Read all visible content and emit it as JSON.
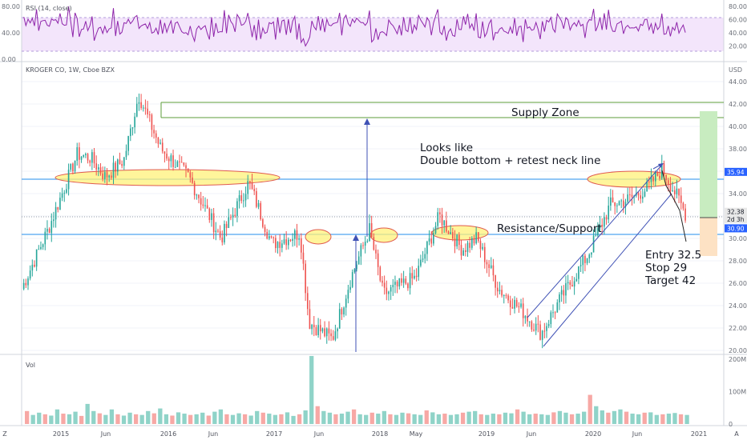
{
  "chart_data": {
    "type": "candlestick",
    "title": "KROGER CO, 1W, Cboe BZX",
    "currency": "USD",
    "price_axis": {
      "min": 20.0,
      "max": 45.0,
      "ticks": [
        "20.00",
        "22.00",
        "24.00",
        "26.00",
        "28.00",
        "30.00",
        "32.00",
        "34.00",
        "36.00",
        "38.00",
        "40.00",
        "42.00",
        "44.00"
      ]
    },
    "rsi": {
      "label": "RSI (14, close)",
      "min": 0,
      "max": 85,
      "upper": 70,
      "lower": 30,
      "ticks": [
        "20.00",
        "40.00",
        "60.00",
        "80.00"
      ],
      "left_ticks": [
        "0.00",
        "40.00",
        "80.00"
      ]
    },
    "volume": {
      "label": "Vol",
      "max": 200,
      "ticks": [
        "0",
        "100M",
        "200M"
      ]
    },
    "x_labels": [
      "Z",
      "2015",
      "Jun",
      "2016",
      "Jun",
      "2017",
      "Jun",
      "2018",
      "May",
      "2019",
      "Jun",
      "2020",
      "Jun",
      "2021",
      "A"
    ],
    "price_tags": [
      {
        "text": "35.94",
        "value": 35.94,
        "color": "#2962ff"
      },
      {
        "text": "32.38",
        "value": 32.38,
        "color": "#e8e8e8"
      },
      {
        "text": "2d 3h",
        "value": 31.7,
        "color": "#e8e8e8"
      },
      {
        "text": "30.90",
        "value": 30.9,
        "color": "#2962ff"
      }
    ],
    "levels": [
      {
        "name": "resistance-support-upper",
        "value": 35.94
      },
      {
        "name": "resistance-support-lower",
        "value": 30.9
      },
      {
        "name": "supply-zone-top",
        "value": 42.9
      },
      {
        "name": "supply-zone-bottom",
        "value": 41.3
      }
    ],
    "trade": {
      "entry": 32.5,
      "stop": 29,
      "target": 42
    },
    "annotations": [
      "Supply Zone",
      "Looks like",
      "Double bottom + retest neck line",
      "Resistance/Support",
      "Entry 32.5",
      "Stop 29",
      "Target 42"
    ],
    "swing_points": [
      {
        "date": "2014-12-01",
        "price": 25.5
      },
      {
        "date": "2015-03-01",
        "price": 31.0
      },
      {
        "date": "2015-06-01",
        "price": 37.5
      },
      {
        "date": "2015-07-15",
        "price": 37.2
      },
      {
        "date": "2015-09-01",
        "price": 35.5
      },
      {
        "date": "2015-11-01",
        "price": 37.0
      },
      {
        "date": "2015-12-20",
        "price": 42.8
      },
      {
        "date": "2016-03-01",
        "price": 38.0
      },
      {
        "date": "2016-06-01",
        "price": 35.5
      },
      {
        "date": "2016-09-15",
        "price": 30.0
      },
      {
        "date": "2016-12-15",
        "price": 35.0
      },
      {
        "date": "2017-03-01",
        "price": 29.5
      },
      {
        "date": "2017-06-01",
        "price": 30.5
      },
      {
        "date": "2017-07-01",
        "price": 22.5
      },
      {
        "date": "2017-09-15",
        "price": 21.0
      },
      {
        "date": "2017-11-15",
        "price": 26.5
      },
      {
        "date": "2018-01-15",
        "price": 30.8
      },
      {
        "date": "2018-03-01",
        "price": 25.0
      },
      {
        "date": "2018-06-15",
        "price": 26.5
      },
      {
        "date": "2018-09-01",
        "price": 32.0
      },
      {
        "date": "2018-11-15",
        "price": 29.0
      },
      {
        "date": "2019-01-01",
        "price": 30.0
      },
      {
        "date": "2019-03-15",
        "price": 25.5
      },
      {
        "date": "2019-06-01",
        "price": 23.5
      },
      {
        "date": "2019-08-01",
        "price": 21.5
      },
      {
        "date": "2019-10-01",
        "price": 24.5
      },
      {
        "date": "2020-01-01",
        "price": 28.5
      },
      {
        "date": "2020-03-15",
        "price": 33.0
      },
      {
        "date": "2020-05-15",
        "price": 33.5
      },
      {
        "date": "2020-07-15",
        "price": 34.5
      },
      {
        "date": "2020-09-01",
        "price": 36.2
      },
      {
        "date": "2020-10-15",
        "price": 34.0
      },
      {
        "date": "2020-11-20",
        "price": 32.0
      }
    ],
    "volume_bars": [
      40,
      28,
      35,
      30,
      26,
      45,
      32,
      30,
      38,
      25,
      62,
      40,
      33,
      28,
      45,
      30,
      26,
      35,
      30,
      28,
      40,
      33,
      48,
      30,
      26,
      36,
      32,
      28,
      30,
      35,
      26,
      38,
      45,
      30,
      28,
      33,
      30,
      26,
      40,
      35,
      32,
      28,
      30,
      36,
      25,
      30,
      42,
      210,
      55,
      40,
      35,
      30,
      32,
      38,
      45,
      30,
      28,
      35,
      32,
      40,
      30,
      28,
      35,
      33,
      30,
      28,
      42,
      36,
      30,
      32,
      28,
      30,
      35,
      38,
      40,
      30,
      28,
      32,
      30,
      35,
      33,
      45,
      38,
      30,
      32,
      30,
      28,
      36,
      40,
      35,
      30,
      32,
      38,
      90,
      55,
      42,
      35,
      40,
      45,
      38,
      32,
      30,
      35,
      36,
      28,
      30,
      32,
      34,
      30,
      28
    ]
  }
}
